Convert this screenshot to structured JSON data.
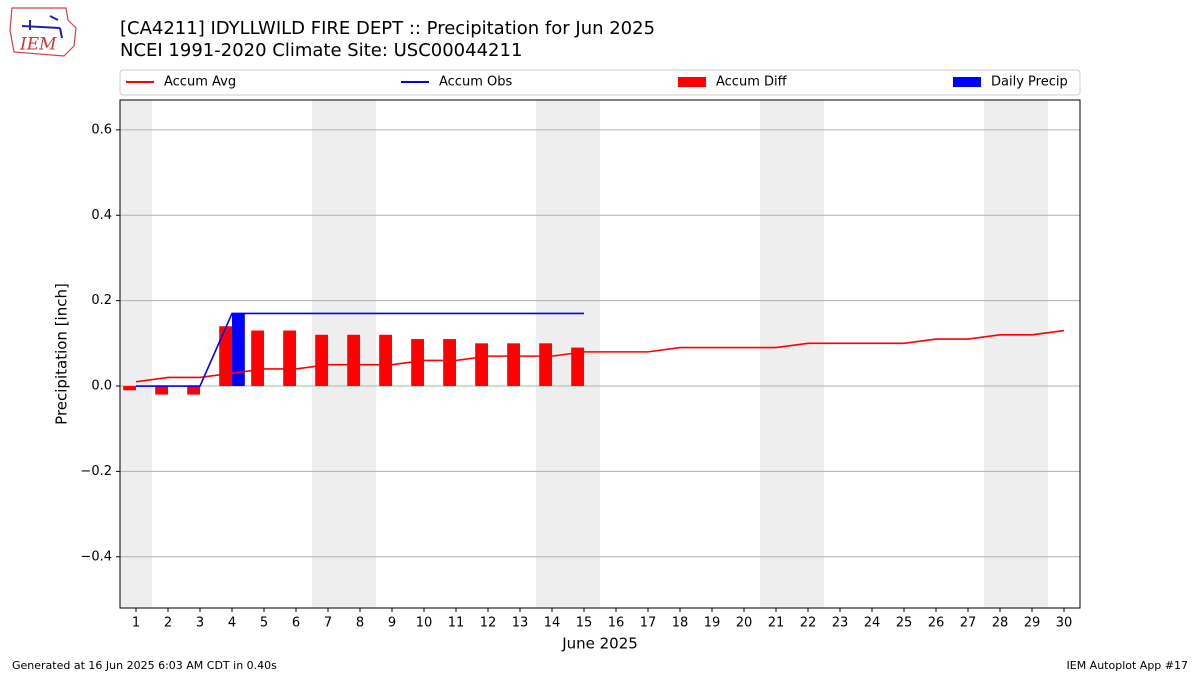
{
  "chart_data": {
    "type": "combo",
    "title": "[CA4211] IDYLLWILD FIRE DEPT :: Precipitation for Jun 2025",
    "subtitle": "NCEI 1991-2020 Climate Site: USC00044211",
    "xlabel": "June 2025",
    "ylabel": "Precipitation [inch]",
    "logo": "IEM",
    "footer_left": "Generated at 16 Jun 2025 6:03 AM CDT in 0.40s",
    "footer_right": "IEM Autoplot App #17",
    "x": [
      1,
      2,
      3,
      4,
      5,
      6,
      7,
      8,
      9,
      10,
      11,
      12,
      13,
      14,
      15,
      16,
      17,
      18,
      19,
      20,
      21,
      22,
      23,
      24,
      25,
      26,
      27,
      28,
      29,
      30
    ],
    "xlim": [
      0.5,
      30.5
    ],
    "xticks": [
      1,
      2,
      3,
      4,
      5,
      6,
      7,
      8,
      9,
      10,
      11,
      12,
      13,
      14,
      15,
      16,
      17,
      18,
      19,
      20,
      21,
      22,
      23,
      24,
      25,
      26,
      27,
      28,
      29,
      30
    ],
    "ylim": [
      -0.52,
      0.67
    ],
    "yticks": [
      {
        "value": -0.4,
        "label": "−0.4"
      },
      {
        "value": -0.2,
        "label": "−0.2"
      },
      {
        "value": 0,
        "label": "0.0"
      },
      0.2,
      0.4,
      0.6
    ],
    "grid": true,
    "shaded_days": [
      1,
      7,
      8,
      14,
      15,
      21,
      22,
      28,
      29
    ],
    "legend": "top",
    "series": [
      {
        "name": "Accum Avg",
        "type": "line",
        "color": "#ff0000",
        "values": [
          0.01,
          0.02,
          0.02,
          0.03,
          0.04,
          0.04,
          0.05,
          0.05,
          0.05,
          0.06,
          0.06,
          0.07,
          0.07,
          0.07,
          0.08,
          0.08,
          0.08,
          0.09,
          0.09,
          0.09,
          0.09,
          0.1,
          0.1,
          0.1,
          0.1,
          0.11,
          0.11,
          0.12,
          0.12,
          0.13
        ]
      },
      {
        "name": "Accum Obs",
        "type": "line",
        "color": "#0000ff",
        "values": [
          0,
          0,
          0,
          0.17,
          0.17,
          0.17,
          0.17,
          0.17,
          0.17,
          0.17,
          0.17,
          0.17,
          0.17,
          0.17,
          0.17,
          null,
          null,
          null,
          null,
          null,
          null,
          null,
          null,
          null,
          null,
          null,
          null,
          null,
          null,
          null
        ]
      },
      {
        "name": "Accum Diff",
        "type": "bar",
        "color": "#ff0000",
        "values": [
          -0.01,
          -0.02,
          -0.02,
          0.14,
          0.13,
          0.13,
          0.12,
          0.12,
          0.12,
          0.11,
          0.11,
          0.1,
          0.1,
          0.1,
          0.09,
          null,
          null,
          null,
          null,
          null,
          null,
          null,
          null,
          null,
          null,
          null,
          null,
          null,
          null,
          null
        ]
      },
      {
        "name": "Daily Precip",
        "type": "bar",
        "color": "#0000ff",
        "values": [
          0,
          0,
          0,
          0.17,
          0,
          0,
          0,
          0,
          0,
          0,
          0,
          0,
          0,
          0,
          0,
          null,
          null,
          null,
          null,
          null,
          null,
          null,
          null,
          null,
          null,
          null,
          null,
          null,
          null,
          null
        ]
      }
    ]
  }
}
